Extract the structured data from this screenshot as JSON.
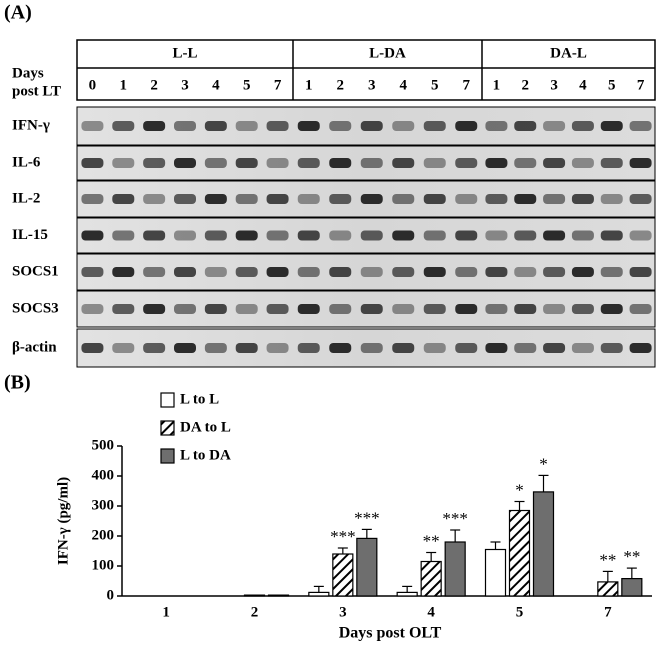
{
  "gel": {
    "panel_label": "(A)",
    "days_label": [
      "Days",
      "post LT"
    ],
    "groups": [
      {
        "name": "L-L",
        "lanes": [
          "0",
          "1",
          "2",
          "3",
          "4",
          "5",
          "7"
        ]
      },
      {
        "name": "L-DA",
        "lanes": [
          "1",
          "2",
          "3",
          "4",
          "5",
          "7"
        ]
      },
      {
        "name": "DA-L",
        "lanes": [
          "1",
          "2",
          "3",
          "4",
          "5",
          "7"
        ]
      }
    ],
    "rows": [
      "IFN-γ",
      "IL-6",
      "IL-2",
      "IL-15",
      "SOCS1",
      "SOCS3",
      "β-actin"
    ]
  },
  "chart_data": {
    "type": "bar",
    "panel_label": "(B)",
    "x_label": "Days post OLT",
    "y_label": "IFN-γ (pg/ml)",
    "categories": [
      "1",
      "2",
      "3",
      "4",
      "5",
      "7"
    ],
    "series": [
      {
        "name": "L to L",
        "color": "#ffffff",
        "values": [
          0,
          0,
          12,
          12,
          155,
          0
        ],
        "errors": [
          0,
          0,
          20,
          20,
          25,
          0
        ],
        "labels": [
          null,
          null,
          null,
          null,
          null,
          null
        ]
      },
      {
        "name": "DA to L",
        "color": "#ffffff",
        "hatch": true,
        "values": [
          0,
          3,
          140,
          115,
          285,
          47
        ],
        "errors": [
          0,
          0,
          20,
          30,
          30,
          35
        ],
        "labels": [
          null,
          null,
          "***",
          "**",
          "*",
          "**"
        ]
      },
      {
        "name": "L to DA",
        "color": "#6e6e6e",
        "values": [
          0,
          3,
          192,
          180,
          347,
          58
        ],
        "errors": [
          0,
          0,
          30,
          40,
          55,
          35
        ],
        "labels": [
          null,
          null,
          "***",
          "***",
          "*",
          "**"
        ]
      }
    ],
    "ylim": [
      0,
      500
    ],
    "yticks": [
      0,
      100,
      200,
      300,
      400,
      500
    ],
    "grid": false
  }
}
